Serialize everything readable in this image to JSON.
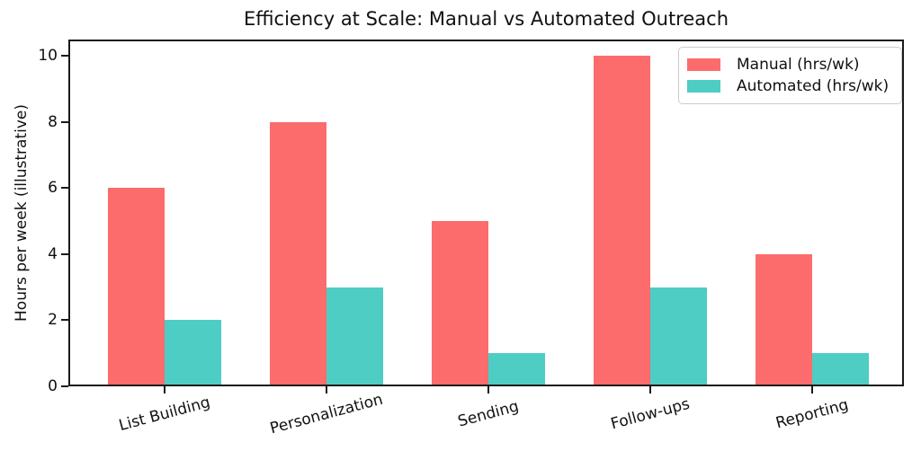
{
  "chart_data": {
    "type": "bar",
    "title": "Efficiency at Scale: Manual vs Automated Outreach",
    "xlabel": "",
    "ylabel": "Hours per week (illustrative)",
    "categories": [
      "List Building",
      "Personalization",
      "Sending",
      "Follow-ups",
      "Reporting"
    ],
    "series": [
      {
        "name": "Manual (hrs/wk)",
        "color": "#FC6C6C",
        "values": [
          6,
          8,
          5,
          10,
          4
        ]
      },
      {
        "name": "Automated (hrs/wk)",
        "color": "#4DCDC4",
        "values": [
          2,
          3,
          1,
          3,
          1
        ]
      }
    ],
    "ylim": [
      0,
      10.5
    ],
    "yticks": [
      0,
      2,
      4,
      6,
      8,
      10
    ],
    "grid": false,
    "legend_position": "upper right",
    "axis_color": "#1a1a1a",
    "text_color": "#111111"
  }
}
